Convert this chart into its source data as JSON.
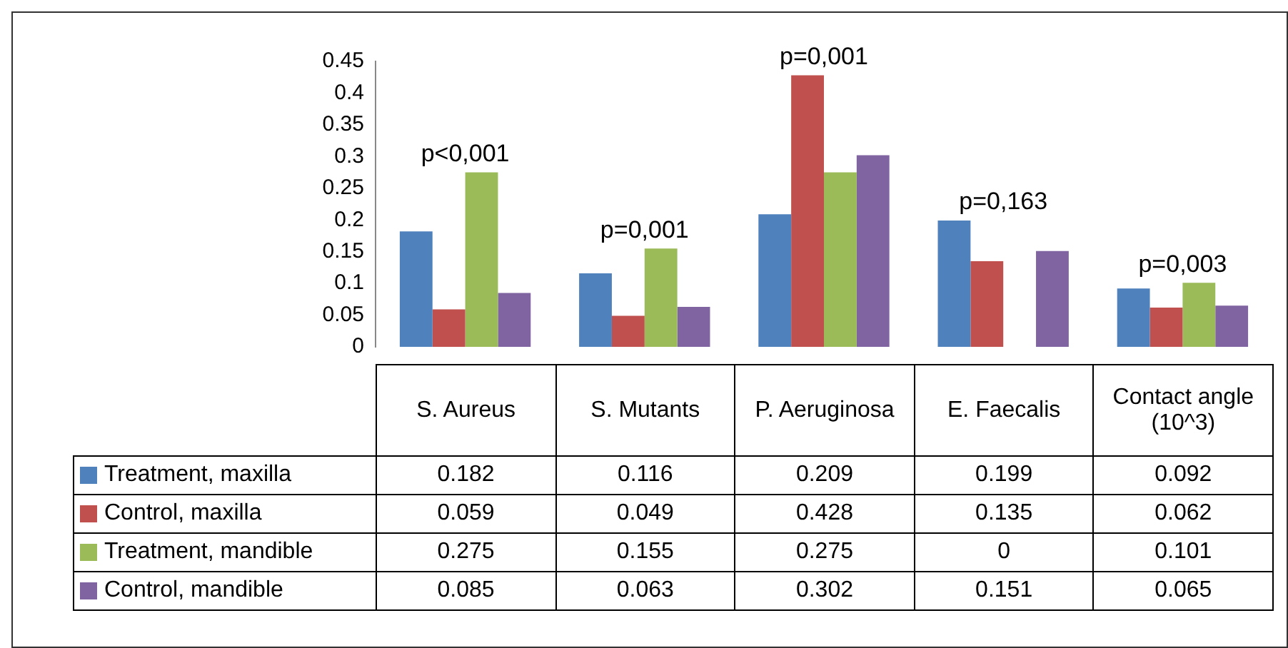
{
  "chart_data": {
    "type": "bar",
    "categories": [
      "S. Aureus",
      "S. Mutants",
      "P. Aeruginosa",
      "E. Faecalis",
      "Contact angle (10^3)"
    ],
    "series": [
      {
        "name": "Treatment, maxilla",
        "color": "#4f81bd",
        "values": [
          0.182,
          0.116,
          0.209,
          0.199,
          0.092
        ]
      },
      {
        "name": "Control, maxilla",
        "color": "#c0504d",
        "values": [
          0.059,
          0.049,
          0.428,
          0.135,
          0.062
        ]
      },
      {
        "name": "Treatment, mandible",
        "color": "#9bbb59",
        "values": [
          0.275,
          0.155,
          0.275,
          0,
          0.101
        ]
      },
      {
        "name": "Control, mandible",
        "color": "#8064a2",
        "values": [
          0.085,
          0.063,
          0.302,
          0.151,
          0.065
        ]
      }
    ],
    "ylim": [
      0,
      0.45
    ],
    "yticks": [
      0,
      0.05,
      0.1,
      0.15,
      0.2,
      0.25,
      0.3,
      0.35,
      0.4,
      0.45
    ],
    "data_labels": true,
    "legend": "bottom",
    "annotations": [
      "p<0,001",
      "p=0,001",
      "p=0,001",
      "p=0,163",
      "p=0,003"
    ]
  }
}
